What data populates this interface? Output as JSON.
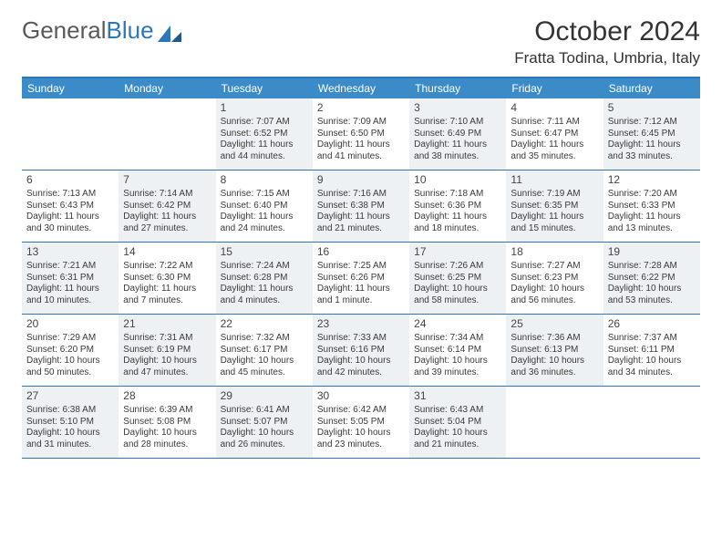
{
  "logo": {
    "text1": "General",
    "text2": "Blue"
  },
  "title": "October 2024",
  "location": "Fratta Todina, Umbria, Italy",
  "colors": {
    "header_bg": "#3b8bc9",
    "border": "#2d77b8",
    "shade_bg": "#eef1f3",
    "text": "#3a3a3a",
    "white": "#ffffff"
  },
  "weekdays": [
    "Sunday",
    "Monday",
    "Tuesday",
    "Wednesday",
    "Thursday",
    "Friday",
    "Saturday"
  ],
  "weeks": [
    [
      {
        "empty": true
      },
      {
        "empty": true
      },
      {
        "n": "1",
        "shade": true,
        "sunrise": "Sunrise: 7:07 AM",
        "sunset": "Sunset: 6:52 PM",
        "day1": "Daylight: 11 hours",
        "day2": "and 44 minutes."
      },
      {
        "n": "2",
        "shade": false,
        "sunrise": "Sunrise: 7:09 AM",
        "sunset": "Sunset: 6:50 PM",
        "day1": "Daylight: 11 hours",
        "day2": "and 41 minutes."
      },
      {
        "n": "3",
        "shade": true,
        "sunrise": "Sunrise: 7:10 AM",
        "sunset": "Sunset: 6:49 PM",
        "day1": "Daylight: 11 hours",
        "day2": "and 38 minutes."
      },
      {
        "n": "4",
        "shade": false,
        "sunrise": "Sunrise: 7:11 AM",
        "sunset": "Sunset: 6:47 PM",
        "day1": "Daylight: 11 hours",
        "day2": "and 35 minutes."
      },
      {
        "n": "5",
        "shade": true,
        "sunrise": "Sunrise: 7:12 AM",
        "sunset": "Sunset: 6:45 PM",
        "day1": "Daylight: 11 hours",
        "day2": "and 33 minutes."
      }
    ],
    [
      {
        "n": "6",
        "shade": false,
        "sunrise": "Sunrise: 7:13 AM",
        "sunset": "Sunset: 6:43 PM",
        "day1": "Daylight: 11 hours",
        "day2": "and 30 minutes."
      },
      {
        "n": "7",
        "shade": true,
        "sunrise": "Sunrise: 7:14 AM",
        "sunset": "Sunset: 6:42 PM",
        "day1": "Daylight: 11 hours",
        "day2": "and 27 minutes."
      },
      {
        "n": "8",
        "shade": false,
        "sunrise": "Sunrise: 7:15 AM",
        "sunset": "Sunset: 6:40 PM",
        "day1": "Daylight: 11 hours",
        "day2": "and 24 minutes."
      },
      {
        "n": "9",
        "shade": true,
        "sunrise": "Sunrise: 7:16 AM",
        "sunset": "Sunset: 6:38 PM",
        "day1": "Daylight: 11 hours",
        "day2": "and 21 minutes."
      },
      {
        "n": "10",
        "shade": false,
        "sunrise": "Sunrise: 7:18 AM",
        "sunset": "Sunset: 6:36 PM",
        "day1": "Daylight: 11 hours",
        "day2": "and 18 minutes."
      },
      {
        "n": "11",
        "shade": true,
        "sunrise": "Sunrise: 7:19 AM",
        "sunset": "Sunset: 6:35 PM",
        "day1": "Daylight: 11 hours",
        "day2": "and 15 minutes."
      },
      {
        "n": "12",
        "shade": false,
        "sunrise": "Sunrise: 7:20 AM",
        "sunset": "Sunset: 6:33 PM",
        "day1": "Daylight: 11 hours",
        "day2": "and 13 minutes."
      }
    ],
    [
      {
        "n": "13",
        "shade": true,
        "sunrise": "Sunrise: 7:21 AM",
        "sunset": "Sunset: 6:31 PM",
        "day1": "Daylight: 11 hours",
        "day2": "and 10 minutes."
      },
      {
        "n": "14",
        "shade": false,
        "sunrise": "Sunrise: 7:22 AM",
        "sunset": "Sunset: 6:30 PM",
        "day1": "Daylight: 11 hours",
        "day2": "and 7 minutes."
      },
      {
        "n": "15",
        "shade": true,
        "sunrise": "Sunrise: 7:24 AM",
        "sunset": "Sunset: 6:28 PM",
        "day1": "Daylight: 11 hours",
        "day2": "and 4 minutes."
      },
      {
        "n": "16",
        "shade": false,
        "sunrise": "Sunrise: 7:25 AM",
        "sunset": "Sunset: 6:26 PM",
        "day1": "Daylight: 11 hours",
        "day2": "and 1 minute."
      },
      {
        "n": "17",
        "shade": true,
        "sunrise": "Sunrise: 7:26 AM",
        "sunset": "Sunset: 6:25 PM",
        "day1": "Daylight: 10 hours",
        "day2": "and 58 minutes."
      },
      {
        "n": "18",
        "shade": false,
        "sunrise": "Sunrise: 7:27 AM",
        "sunset": "Sunset: 6:23 PM",
        "day1": "Daylight: 10 hours",
        "day2": "and 56 minutes."
      },
      {
        "n": "19",
        "shade": true,
        "sunrise": "Sunrise: 7:28 AM",
        "sunset": "Sunset: 6:22 PM",
        "day1": "Daylight: 10 hours",
        "day2": "and 53 minutes."
      }
    ],
    [
      {
        "n": "20",
        "shade": false,
        "sunrise": "Sunrise: 7:29 AM",
        "sunset": "Sunset: 6:20 PM",
        "day1": "Daylight: 10 hours",
        "day2": "and 50 minutes."
      },
      {
        "n": "21",
        "shade": true,
        "sunrise": "Sunrise: 7:31 AM",
        "sunset": "Sunset: 6:19 PM",
        "day1": "Daylight: 10 hours",
        "day2": "and 47 minutes."
      },
      {
        "n": "22",
        "shade": false,
        "sunrise": "Sunrise: 7:32 AM",
        "sunset": "Sunset: 6:17 PM",
        "day1": "Daylight: 10 hours",
        "day2": "and 45 minutes."
      },
      {
        "n": "23",
        "shade": true,
        "sunrise": "Sunrise: 7:33 AM",
        "sunset": "Sunset: 6:16 PM",
        "day1": "Daylight: 10 hours",
        "day2": "and 42 minutes."
      },
      {
        "n": "24",
        "shade": false,
        "sunrise": "Sunrise: 7:34 AM",
        "sunset": "Sunset: 6:14 PM",
        "day1": "Daylight: 10 hours",
        "day2": "and 39 minutes."
      },
      {
        "n": "25",
        "shade": true,
        "sunrise": "Sunrise: 7:36 AM",
        "sunset": "Sunset: 6:13 PM",
        "day1": "Daylight: 10 hours",
        "day2": "and 36 minutes."
      },
      {
        "n": "26",
        "shade": false,
        "sunrise": "Sunrise: 7:37 AM",
        "sunset": "Sunset: 6:11 PM",
        "day1": "Daylight: 10 hours",
        "day2": "and 34 minutes."
      }
    ],
    [
      {
        "n": "27",
        "shade": true,
        "sunrise": "Sunrise: 6:38 AM",
        "sunset": "Sunset: 5:10 PM",
        "day1": "Daylight: 10 hours",
        "day2": "and 31 minutes."
      },
      {
        "n": "28",
        "shade": false,
        "sunrise": "Sunrise: 6:39 AM",
        "sunset": "Sunset: 5:08 PM",
        "day1": "Daylight: 10 hours",
        "day2": "and 28 minutes."
      },
      {
        "n": "29",
        "shade": true,
        "sunrise": "Sunrise: 6:41 AM",
        "sunset": "Sunset: 5:07 PM",
        "day1": "Daylight: 10 hours",
        "day2": "and 26 minutes."
      },
      {
        "n": "30",
        "shade": false,
        "sunrise": "Sunrise: 6:42 AM",
        "sunset": "Sunset: 5:05 PM",
        "day1": "Daylight: 10 hours",
        "day2": "and 23 minutes."
      },
      {
        "n": "31",
        "shade": true,
        "sunrise": "Sunrise: 6:43 AM",
        "sunset": "Sunset: 5:04 PM",
        "day1": "Daylight: 10 hours",
        "day2": "and 21 minutes."
      },
      {
        "empty": true
      },
      {
        "empty": true
      }
    ]
  ]
}
